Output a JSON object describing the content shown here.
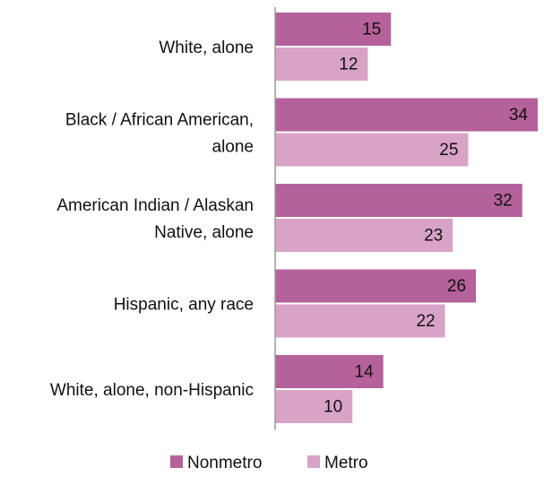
{
  "chart_data": {
    "type": "bar",
    "orientation": "horizontal",
    "categories": [
      "White, alone",
      "Black / African American, alone",
      "American Indian / Alaskan Native, alone",
      "Hispanic, any race",
      "White, alone, non-Hispanic"
    ],
    "category_label_lines": [
      [
        "White, alone"
      ],
      [
        "Black / African American,",
        "alone"
      ],
      [
        "American Indian / Alaskan",
        "Native, alone"
      ],
      [
        "Hispanic, any race"
      ],
      [
        "White, alone, non-Hispanic"
      ]
    ],
    "series": [
      {
        "name": "Nonmetro",
        "color": "#b5619a",
        "values": [
          15,
          34,
          32,
          26,
          14
        ]
      },
      {
        "name": "Metro",
        "color": "#d8a3c7",
        "values": [
          12,
          25,
          23,
          22,
          10
        ]
      }
    ],
    "title": "",
    "xlabel": "",
    "ylabel": "",
    "xlim": [
      0,
      34
    ],
    "grid": false,
    "data_labels": true,
    "legend": {
      "position": "bottom-center",
      "entries": [
        "Nonmetro",
        "Metro"
      ]
    }
  }
}
